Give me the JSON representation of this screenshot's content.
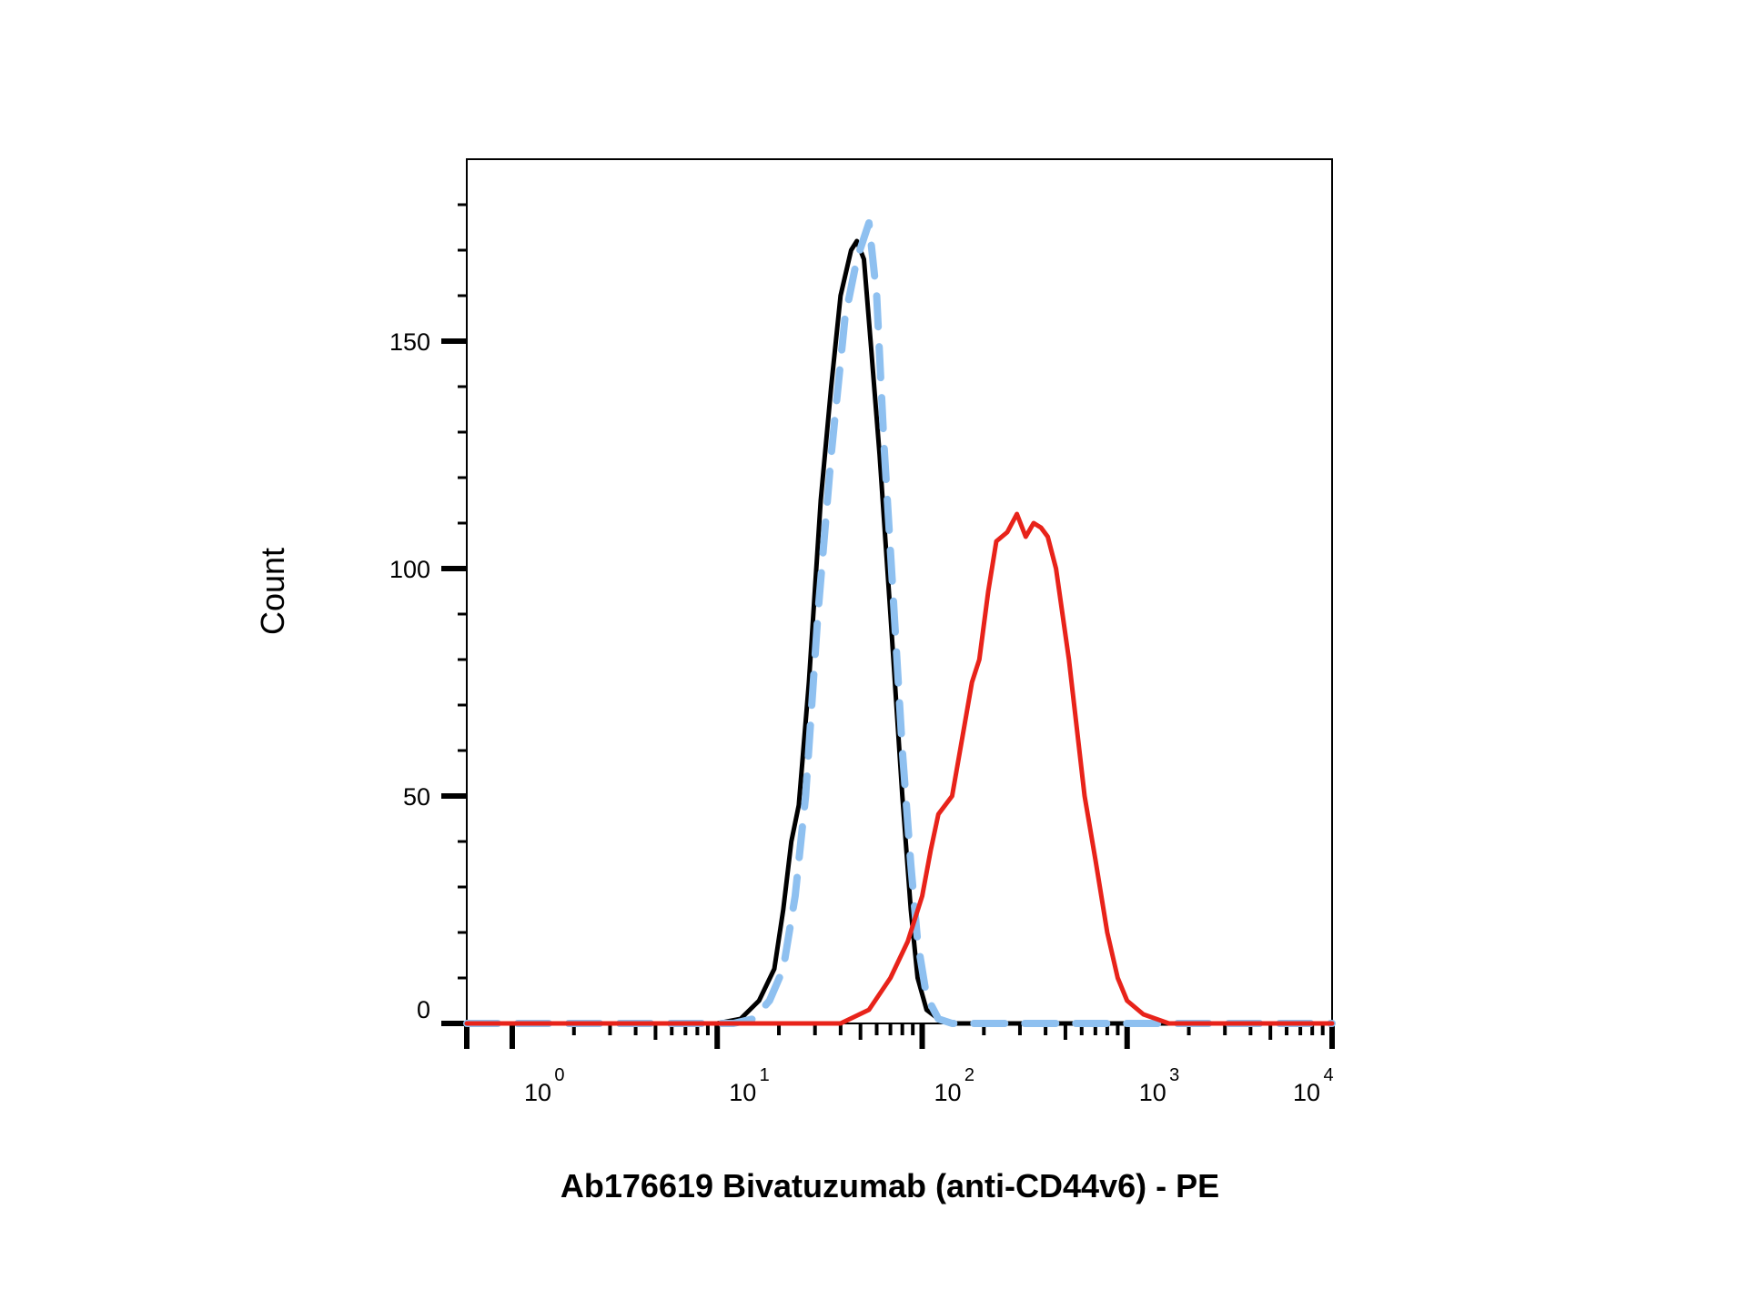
{
  "chart_data": {
    "type": "line",
    "title": "",
    "xlabel": "Ab176619 Bivatuzumab (anti-CD44v6) - PE",
    "ylabel": "Count",
    "x_scale": "log",
    "xlim": [
      0.6,
      10000
    ],
    "ylim": [
      0,
      190
    ],
    "y_ticks": [
      0,
      50,
      100,
      150
    ],
    "y_tick_labels": [
      "0",
      "50",
      "100",
      "150"
    ],
    "x_ticks": [
      1,
      10,
      100,
      1000,
      10000
    ],
    "x_tick_labels": [
      {
        "base": "10",
        "exp": "0"
      },
      {
        "base": "10",
        "exp": "1"
      },
      {
        "base": "10",
        "exp": "2"
      },
      {
        "base": "10",
        "exp": "3"
      },
      {
        "base": "10",
        "exp": "4"
      }
    ],
    "grid": false,
    "series": [
      {
        "color": "#000000",
        "style": "solid",
        "points": [
          [
            0.6,
            0
          ],
          [
            10,
            0
          ],
          [
            13,
            1
          ],
          [
            16,
            5
          ],
          [
            19,
            12
          ],
          [
            21,
            25
          ],
          [
            23,
            40
          ],
          [
            25,
            48
          ],
          [
            28,
            75
          ],
          [
            32,
            115
          ],
          [
            36,
            140
          ],
          [
            40,
            160
          ],
          [
            45,
            170
          ],
          [
            48,
            172
          ],
          [
            52,
            168
          ],
          [
            56,
            150
          ],
          [
            62,
            125
          ],
          [
            70,
            90
          ],
          [
            80,
            50
          ],
          [
            88,
            25
          ],
          [
            95,
            10
          ],
          [
            105,
            3
          ],
          [
            120,
            1
          ],
          [
            140,
            0
          ],
          [
            10000,
            0
          ]
        ]
      },
      {
        "color": "#8ec0f0",
        "style": "dashed",
        "points": [
          [
            0.6,
            0
          ],
          [
            12,
            0
          ],
          [
            15,
            1
          ],
          [
            18,
            5
          ],
          [
            21,
            12
          ],
          [
            24,
            28
          ],
          [
            27,
            50
          ],
          [
            31,
            90
          ],
          [
            36,
            125
          ],
          [
            42,
            155
          ],
          [
            48,
            168
          ],
          [
            55,
            176
          ],
          [
            60,
            160
          ],
          [
            65,
            128
          ],
          [
            72,
            95
          ],
          [
            80,
            60
          ],
          [
            88,
            35
          ],
          [
            95,
            18
          ],
          [
            105,
            6
          ],
          [
            120,
            1
          ],
          [
            140,
            0
          ],
          [
            10000,
            0
          ]
        ]
      },
      {
        "color": "#e8231a",
        "style": "solid",
        "points": [
          [
            0.6,
            0
          ],
          [
            40,
            0
          ],
          [
            55,
            3
          ],
          [
            70,
            10
          ],
          [
            85,
            18
          ],
          [
            100,
            28
          ],
          [
            110,
            38
          ],
          [
            120,
            46
          ],
          [
            140,
            50
          ],
          [
            160,
            65
          ],
          [
            175,
            75
          ],
          [
            190,
            80
          ],
          [
            210,
            95
          ],
          [
            230,
            106
          ],
          [
            260,
            108
          ],
          [
            290,
            112
          ],
          [
            320,
            107
          ],
          [
            350,
            110
          ],
          [
            380,
            109
          ],
          [
            410,
            107
          ],
          [
            450,
            100
          ],
          [
            520,
            80
          ],
          [
            620,
            50
          ],
          [
            700,
            36
          ],
          [
            800,
            20
          ],
          [
            900,
            10
          ],
          [
            1000,
            5
          ],
          [
            1200,
            2
          ],
          [
            1600,
            0
          ],
          [
            10000,
            0
          ]
        ]
      }
    ]
  }
}
